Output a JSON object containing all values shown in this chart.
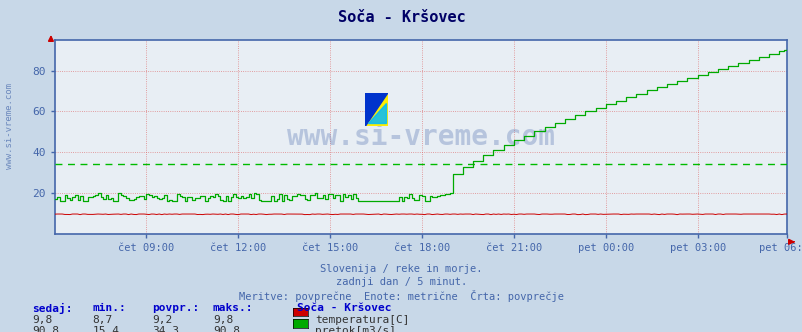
{
  "title": "Soča - Kršovec",
  "bg_color": "#c8d8e8",
  "plot_bg_color": "#e8eef4",
  "grid_color": "#dd6666",
  "axis_color": "#4466aa",
  "title_color": "#000066",
  "x_tick_labels": [
    "čet 09:00",
    "čet 12:00",
    "čet 15:00",
    "čet 18:00",
    "čet 21:00",
    "pet 00:00",
    "pet 03:00",
    "pet 06:00"
  ],
  "x_tick_positions": [
    36,
    72,
    108,
    144,
    180,
    216,
    252,
    287
  ],
  "y_ticks": [
    20,
    40,
    60,
    80
  ],
  "ylim": [
    0,
    95
  ],
  "n_points": 288,
  "temp_color": "#cc0000",
  "flow_color": "#00aa00",
  "avg_line_color": "#00bb00",
  "avg_flow": 34.3,
  "flow_peak": 90.8,
  "subtitle1": "Slovenija / reke in morje.",
  "subtitle2": "zadnji dan / 5 minut.",
  "subtitle3": "Meritve: povprečne  Enote: metrične  Črta: povprečje",
  "watermark": "www.si-vreme.com",
  "watermark_color": "#4466aa",
  "legend_title": "Soča - Kršovec",
  "legend_items": [
    "temperatura[C]",
    "pretok[m3/s]"
  ],
  "legend_colors": [
    "#cc0000",
    "#00aa00"
  ],
  "stats_headers": [
    "sedaj:",
    "min.:",
    "povpr.:",
    "maks.:"
  ],
  "temp_stats": [
    "9,8",
    "8,7",
    "9,2",
    "9,8"
  ],
  "flow_stats": [
    "90,8",
    "15,4",
    "34,3",
    "90,8"
  ],
  "left_watermark_color": "#4466aa"
}
